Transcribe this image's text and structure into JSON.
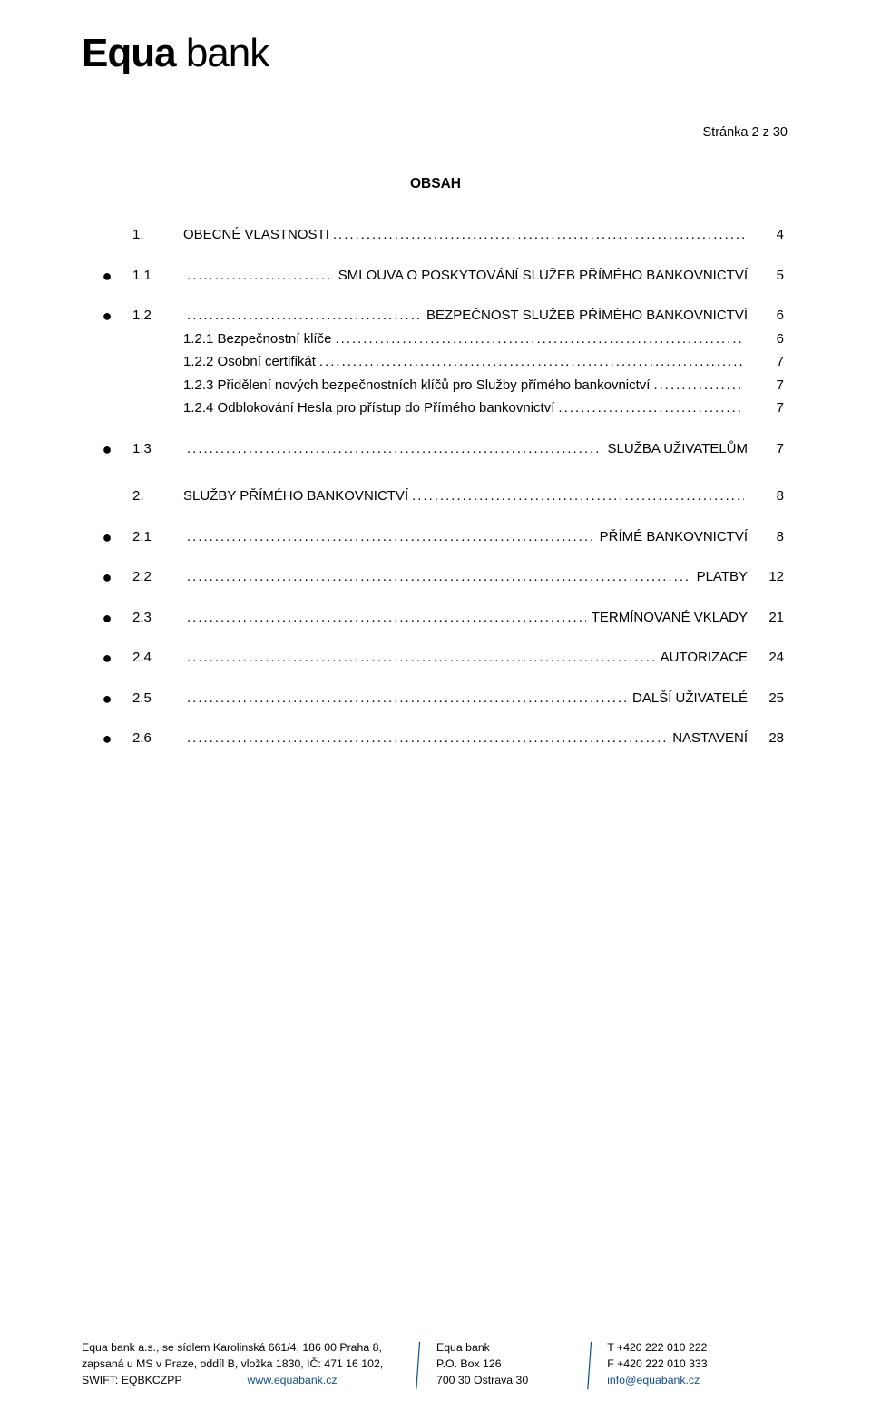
{
  "logo": {
    "brand_a": "Equa",
    "brand_b": "bank"
  },
  "page_indicator": "Stránka 2 z 30",
  "heading": "OBSAH",
  "toc": [
    {
      "kind": "h1",
      "num": "1.",
      "label": "OBECNÉ VLASTNOSTI",
      "tail": "",
      "page": "4",
      "gap": "small"
    },
    {
      "kind": "bullet",
      "num": "1.1",
      "label": "",
      "tail": "SMLOUVA O POSKYTOVÁNÍ SLUŽEB PŘÍMÉHO BANKOVNICTVÍ",
      "page": "5",
      "gap": "small"
    },
    {
      "kind": "bullet",
      "num": "1.2",
      "label": "",
      "tail": " BEZPEČNOST SLUŽEB PŘÍMÉHO BANKOVNICTVÍ",
      "page": "6"
    },
    {
      "kind": "sub",
      "num": "",
      "label": "1.2.1 Bezpečnostní klíče",
      "tail": "",
      "page": "6"
    },
    {
      "kind": "sub",
      "num": "",
      "label": "1.2.2 Osobní certifikát",
      "tail": "",
      "page": "7"
    },
    {
      "kind": "sub",
      "num": "",
      "label": "1.2.3 Přidělení nových bezpečnostních klíčů pro Služby přímého bankovnictví",
      "tail": "",
      "page": "7"
    },
    {
      "kind": "sub",
      "num": "",
      "label": "1.2.4 Odblokování Hesla pro přístup do Přímého bankovnictví",
      "tail": "",
      "page": "7",
      "gap": "small"
    },
    {
      "kind": "bullet",
      "num": "1.3",
      "label": "",
      "tail": " SLUŽBA UŽIVATELŮM",
      "page": "7",
      "gap": "big"
    },
    {
      "kind": "h1",
      "num": "2.",
      "label": "SLUŽBY PŘÍMÉHO BANKOVNICTVÍ",
      "tail": "",
      "page": "8",
      "gap": "small"
    },
    {
      "kind": "bullet",
      "num": "2.1",
      "label": "",
      "tail": " PŘÍMÉ BANKOVNICTVÍ",
      "page": "8",
      "gap": "small"
    },
    {
      "kind": "bullet",
      "num": "2.2",
      "label": "",
      "tail": " PLATBY",
      "page": "12",
      "gap": "small"
    },
    {
      "kind": "bullet",
      "num": "2.3",
      "label": "",
      "tail": " TERMÍNOVANÉ VKLADY",
      "page": "21",
      "gap": "small"
    },
    {
      "kind": "bullet",
      "num": "2.4",
      "label": "",
      "tail": " AUTORIZACE",
      "page": "24",
      "gap": "small"
    },
    {
      "kind": "bullet",
      "num": "2.5",
      "label": "",
      "tail": " DALŠÍ UŽIVATELÉ",
      "page": "25",
      "gap": "small"
    },
    {
      "kind": "bullet",
      "num": "2.6",
      "label": "",
      "tail": "NASTAVENÍ",
      "page": "28"
    }
  ],
  "footer": {
    "col1": {
      "l1a": "Equa bank a.s., se sídlem Karolinská 661/4, 186 00 Praha 8,",
      "l2": "zapsaná u MS v Praze, oddíl B, vložka 1830, IČ: 471 16 102,",
      "l3a": "SWIFT: EQBKCZPP",
      "l3b": "www.equabank.cz"
    },
    "col2": {
      "l1": "Equa bank",
      "l2": "P.O. Box 126",
      "l3": "700 30 Ostrava 30"
    },
    "col3": {
      "l1": "T +420 222 010 222",
      "l2": "F +420 222 010 333",
      "l3": "info@equabank.cz"
    },
    "colors": {
      "link": "#10508b",
      "sep": "#0c4f8a"
    }
  }
}
